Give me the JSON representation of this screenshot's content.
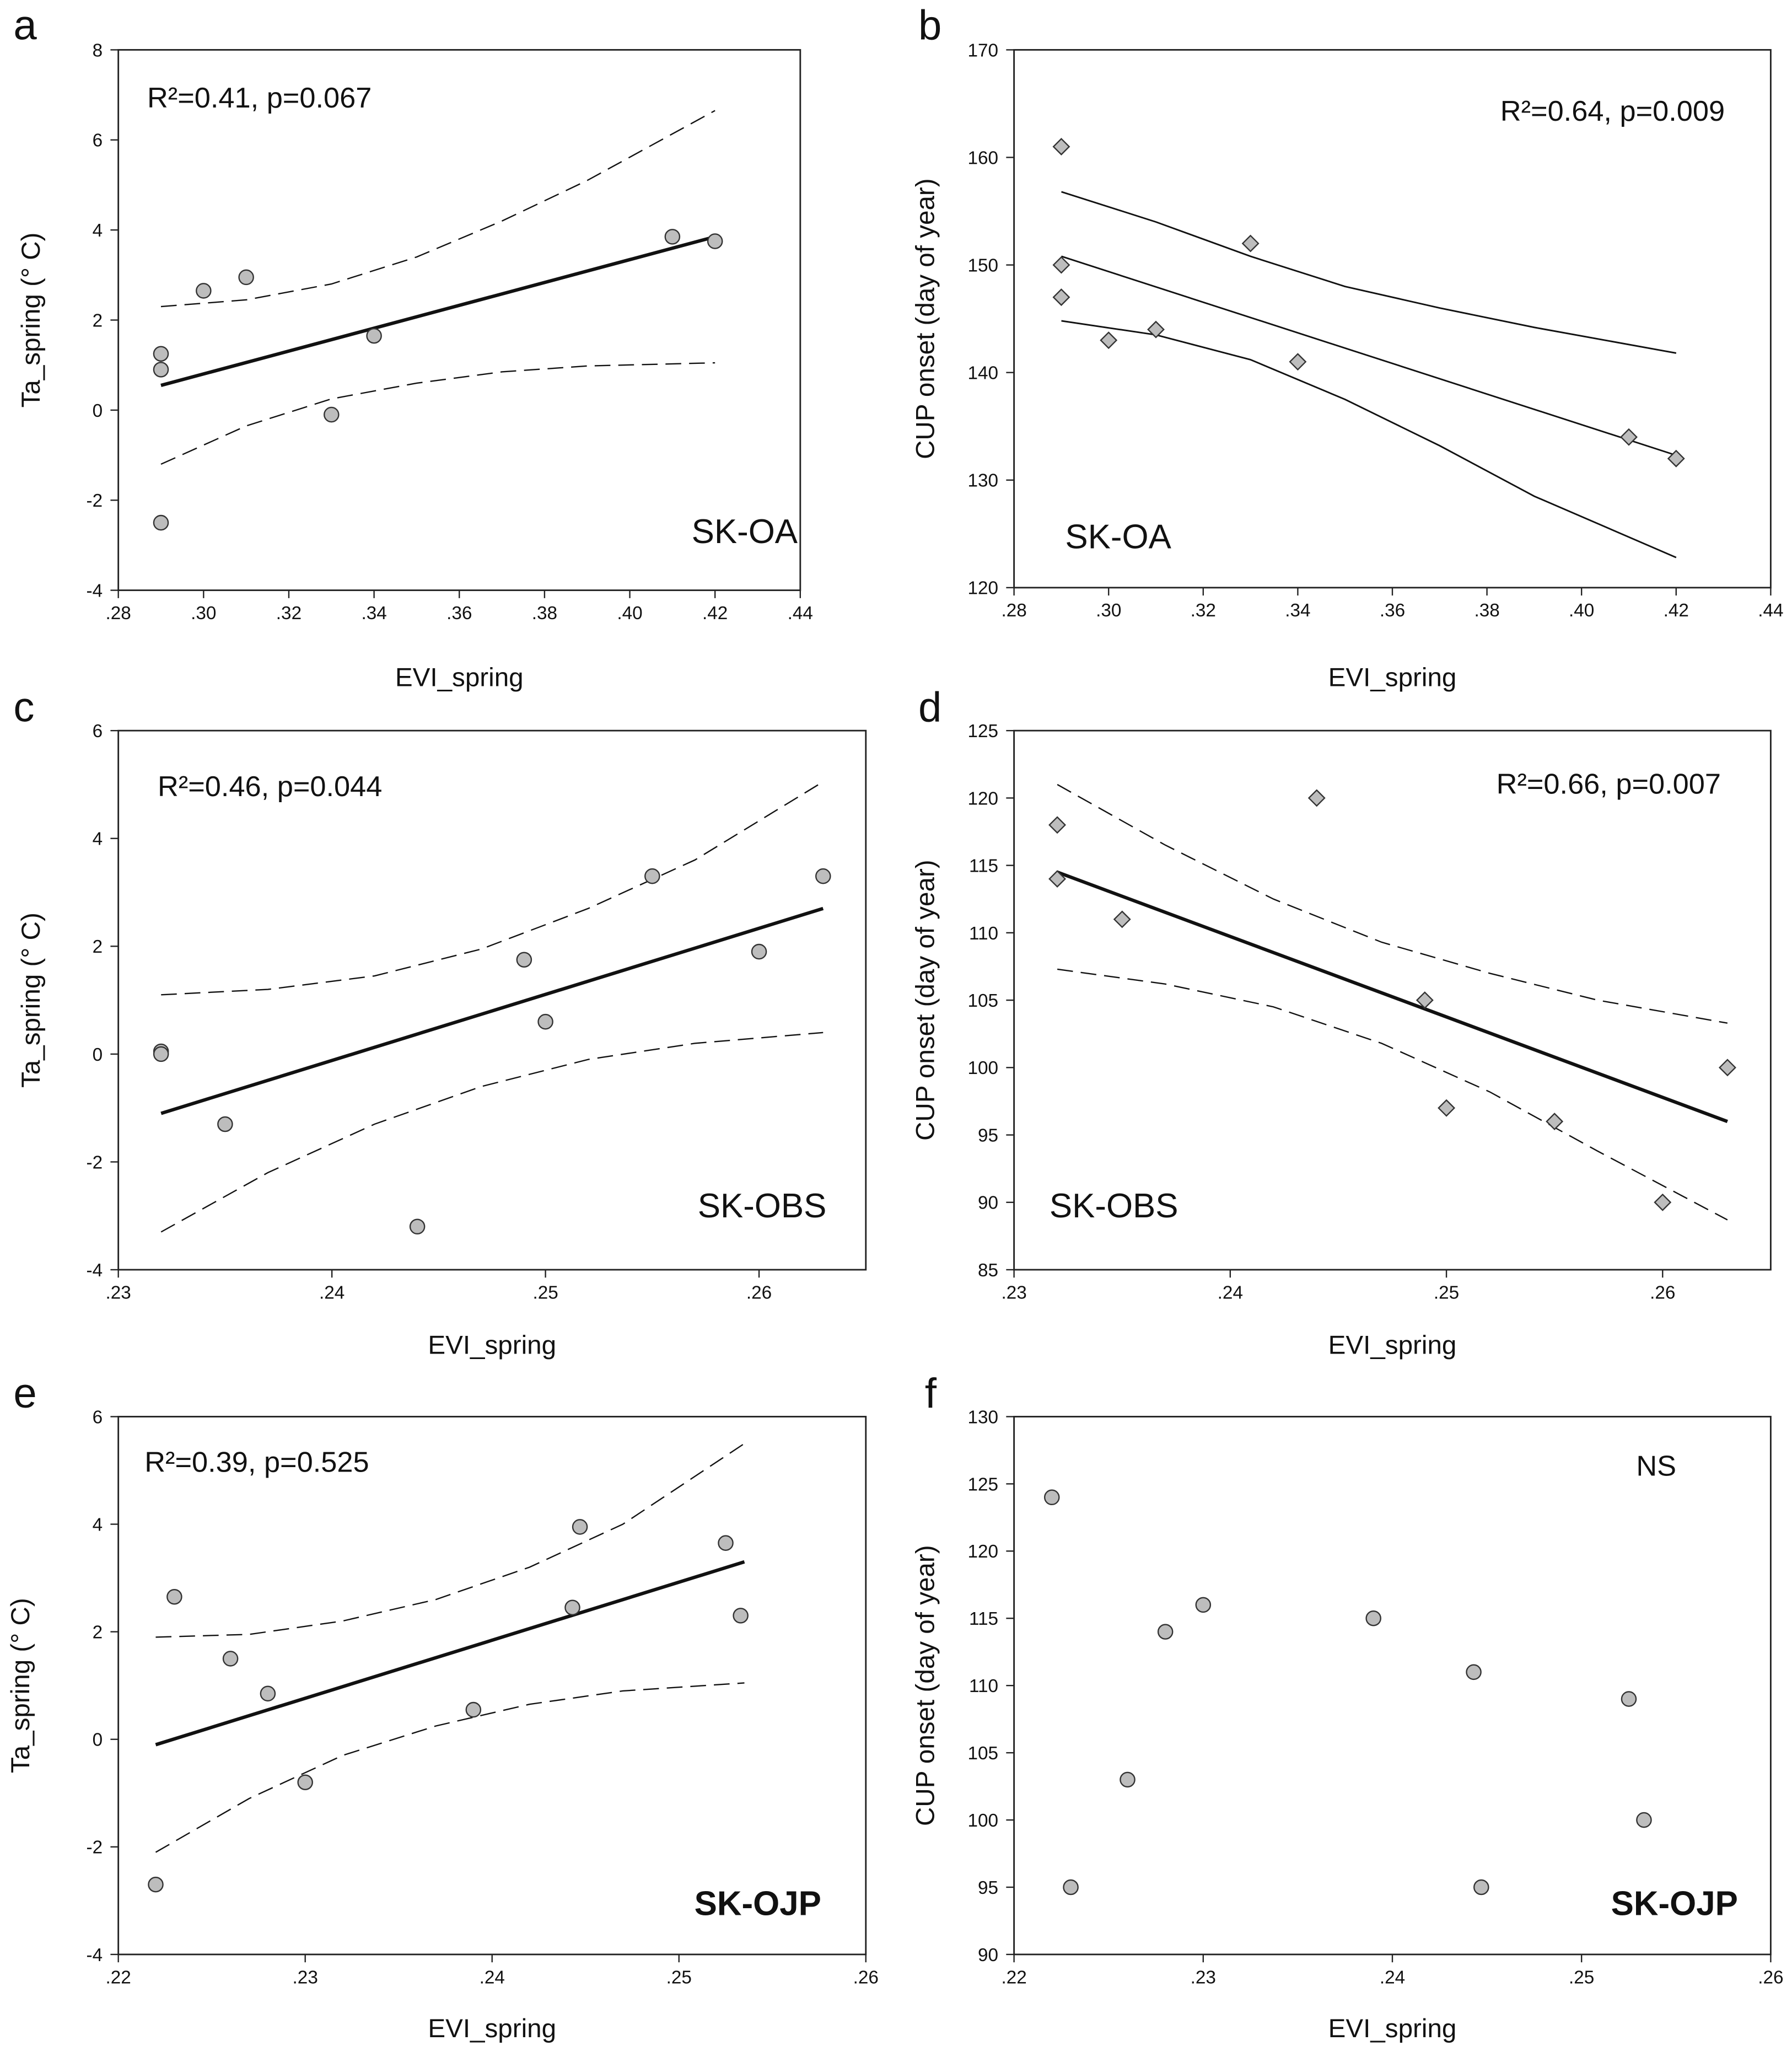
{
  "chart_data": [
    {
      "panel": "a",
      "type": "scatter",
      "xlabel": "EVI_spring",
      "ylabel": "Ta_spring (° C)",
      "stat": "R²=0.41, p=0.067",
      "site": "SK-OA",
      "marker": "circle",
      "fit_style": "thick",
      "ci_style": "dashed",
      "xlim": [
        0.28,
        0.44
      ],
      "ylim": [
        -4,
        8
      ],
      "xticks": [
        0.28,
        0.3,
        0.32,
        0.34,
        0.36,
        0.38,
        0.4,
        0.42,
        0.44
      ],
      "xtick_labels": [
        ".28",
        ".30",
        ".32",
        ".34",
        ".36",
        ".38",
        ".40",
        ".42",
        ".44"
      ],
      "yticks": [
        -4,
        -2,
        0,
        2,
        4,
        6,
        8
      ],
      "ytick_labels": [
        "-4",
        "-2",
        "0",
        "2",
        "4",
        "6",
        "8"
      ],
      "points": [
        [
          0.29,
          -2.5
        ],
        [
          0.29,
          0.9
        ],
        [
          0.29,
          1.25
        ],
        [
          0.3,
          2.65
        ],
        [
          0.31,
          2.95
        ],
        [
          0.33,
          -0.1
        ],
        [
          0.34,
          1.65
        ],
        [
          0.41,
          3.85
        ],
        [
          0.42,
          3.75
        ]
      ],
      "fit": [
        [
          0.29,
          0.55
        ],
        [
          0.42,
          3.85
        ]
      ],
      "ci_upper": [
        [
          0.29,
          2.3
        ],
        [
          0.31,
          2.45
        ],
        [
          0.33,
          2.8
        ],
        [
          0.35,
          3.4
        ],
        [
          0.37,
          4.2
        ],
        [
          0.39,
          5.1
        ],
        [
          0.42,
          6.65
        ]
      ],
      "ci_lower": [
        [
          0.29,
          -1.2
        ],
        [
          0.31,
          -0.35
        ],
        [
          0.33,
          0.25
        ],
        [
          0.35,
          0.6
        ],
        [
          0.37,
          0.85
        ],
        [
          0.39,
          0.98
        ],
        [
          0.42,
          1.05
        ]
      ]
    },
    {
      "panel": "b",
      "type": "scatter",
      "xlabel": "EVI_spring",
      "ylabel": "CUP onset (day of year)",
      "stat": "R²=0.64, p=0.009",
      "site": "SK-OA",
      "marker": "diamond",
      "fit_style": "thin",
      "ci_style": "thin",
      "xlim": [
        0.28,
        0.44
      ],
      "ylim": [
        120,
        170
      ],
      "xticks": [
        0.28,
        0.3,
        0.32,
        0.34,
        0.36,
        0.38,
        0.4,
        0.42,
        0.44
      ],
      "xtick_labels": [
        ".28",
        ".30",
        ".32",
        ".34",
        ".36",
        ".38",
        ".40",
        ".42",
        ".44"
      ],
      "yticks": [
        120,
        130,
        140,
        150,
        160,
        170
      ],
      "ytick_labels": [
        "120",
        "130",
        "140",
        "150",
        "160",
        "170"
      ],
      "points": [
        [
          0.29,
          161
        ],
        [
          0.29,
          150
        ],
        [
          0.29,
          147
        ],
        [
          0.3,
          143
        ],
        [
          0.31,
          144
        ],
        [
          0.33,
          152
        ],
        [
          0.34,
          141
        ],
        [
          0.41,
          134
        ],
        [
          0.42,
          132
        ]
      ],
      "fit": [
        [
          0.29,
          150.8
        ],
        [
          0.42,
          132.3
        ]
      ],
      "ci_upper": [
        [
          0.29,
          156.8
        ],
        [
          0.31,
          154
        ],
        [
          0.33,
          150.8
        ],
        [
          0.35,
          148
        ],
        [
          0.37,
          146
        ],
        [
          0.39,
          144.2
        ],
        [
          0.42,
          141.8
        ]
      ],
      "ci_lower": [
        [
          0.29,
          144.8
        ],
        [
          0.31,
          143.5
        ],
        [
          0.33,
          141.2
        ],
        [
          0.35,
          137.5
        ],
        [
          0.37,
          133.2
        ],
        [
          0.39,
          128.5
        ],
        [
          0.42,
          122.8
        ]
      ]
    },
    {
      "panel": "c",
      "type": "scatter",
      "xlabel": "EVI_spring",
      "ylabel": "Ta_spring (° C)",
      "stat": "R²=0.46, p=0.044",
      "site": "SK-OBS",
      "marker": "circle",
      "fit_style": "thick",
      "ci_style": "dashed",
      "xlim": [
        0.23,
        0.265
      ],
      "ylim": [
        -4,
        6
      ],
      "xticks": [
        0.23,
        0.24,
        0.25,
        0.26
      ],
      "xtick_labels": [
        ".23",
        ".24",
        ".25",
        ".26"
      ],
      "yticks": [
        -4,
        -2,
        0,
        2,
        4,
        6
      ],
      "ytick_labels": [
        "-4",
        "-2",
        "0",
        "2",
        "4",
        "6"
      ],
      "points": [
        [
          0.232,
          0.05
        ],
        [
          0.232,
          0.0
        ],
        [
          0.235,
          -1.3
        ],
        [
          0.244,
          -3.2
        ],
        [
          0.249,
          1.75
        ],
        [
          0.25,
          0.6
        ],
        [
          0.255,
          3.3
        ],
        [
          0.26,
          1.9
        ],
        [
          0.263,
          3.3
        ]
      ],
      "fit": [
        [
          0.232,
          -1.1
        ],
        [
          0.263,
          2.7
        ]
      ],
      "ci_upper": [
        [
          0.232,
          1.1
        ],
        [
          0.237,
          1.2
        ],
        [
          0.242,
          1.45
        ],
        [
          0.247,
          1.95
        ],
        [
          0.252,
          2.7
        ],
        [
          0.257,
          3.6
        ],
        [
          0.263,
          5.05
        ]
      ],
      "ci_lower": [
        [
          0.232,
          -3.3
        ],
        [
          0.237,
          -2.2
        ],
        [
          0.242,
          -1.3
        ],
        [
          0.247,
          -0.6
        ],
        [
          0.252,
          -0.1
        ],
        [
          0.257,
          0.2
        ],
        [
          0.263,
          0.4
        ]
      ]
    },
    {
      "panel": "d",
      "type": "scatter",
      "xlabel": "EVI_spring",
      "ylabel": "CUP onset (day of year)",
      "stat": "R²=0.66, p=0.007",
      "site": "SK-OBS",
      "marker": "diamond",
      "fit_style": "thick",
      "ci_style": "dashed",
      "xlim": [
        0.23,
        0.265
      ],
      "ylim": [
        85,
        125
      ],
      "xticks": [
        0.23,
        0.24,
        0.25,
        0.26
      ],
      "xtick_labels": [
        ".23",
        ".24",
        ".25",
        ".26"
      ],
      "yticks": [
        85,
        90,
        95,
        100,
        105,
        110,
        115,
        120,
        125
      ],
      "ytick_labels": [
        "85",
        "90",
        "95",
        "100",
        "105",
        "110",
        "115",
        "120",
        "125"
      ],
      "points": [
        [
          0.232,
          118
        ],
        [
          0.232,
          114
        ],
        [
          0.235,
          111
        ],
        [
          0.244,
          120
        ],
        [
          0.249,
          105
        ],
        [
          0.25,
          97
        ],
        [
          0.255,
          96
        ],
        [
          0.26,
          90
        ],
        [
          0.263,
          100
        ]
      ],
      "fit": [
        [
          0.232,
          114.5
        ],
        [
          0.263,
          96
        ]
      ],
      "ci_upper": [
        [
          0.232,
          121
        ],
        [
          0.237,
          116.5
        ],
        [
          0.242,
          112.5
        ],
        [
          0.247,
          109.3
        ],
        [
          0.252,
          107
        ],
        [
          0.257,
          105
        ],
        [
          0.263,
          103.3
        ]
      ],
      "ci_lower": [
        [
          0.232,
          107.3
        ],
        [
          0.237,
          106.2
        ],
        [
          0.242,
          104.5
        ],
        [
          0.247,
          101.8
        ],
        [
          0.252,
          98.2
        ],
        [
          0.257,
          93.8
        ],
        [
          0.263,
          88.7
        ]
      ]
    },
    {
      "panel": "e",
      "type": "scatter",
      "xlabel": "EVI_spring",
      "ylabel": "Ta_spring (° C)",
      "stat": "R²=0.39, p=0.525",
      "site": "SK-OJP",
      "marker": "circle",
      "fit_style": "thick",
      "ci_style": "dashed",
      "xlim": [
        0.22,
        0.26
      ],
      "ylim": [
        -4,
        6
      ],
      "xticks": [
        0.22,
        0.23,
        0.24,
        0.25,
        0.26
      ],
      "xtick_labels": [
        ".22",
        ".23",
        ".24",
        ".25",
        ".26"
      ],
      "yticks": [
        -4,
        -2,
        0,
        2,
        4,
        6
      ],
      "ytick_labels": [
        "-4",
        "-2",
        "0",
        "2",
        "4",
        "6"
      ],
      "points": [
        [
          0.222,
          -2.7
        ],
        [
          0.223,
          2.65
        ],
        [
          0.226,
          1.5
        ],
        [
          0.228,
          0.85
        ],
        [
          0.23,
          -0.8
        ],
        [
          0.239,
          0.55
        ],
        [
          0.2443,
          2.45
        ],
        [
          0.2447,
          3.95
        ],
        [
          0.2525,
          3.65
        ],
        [
          0.2533,
          2.3
        ]
      ],
      "fit": [
        [
          0.222,
          -0.1
        ],
        [
          0.2535,
          3.3
        ]
      ],
      "ci_upper": [
        [
          0.222,
          1.9
        ],
        [
          0.227,
          1.95
        ],
        [
          0.232,
          2.2
        ],
        [
          0.237,
          2.6
        ],
        [
          0.242,
          3.2
        ],
        [
          0.247,
          4.0
        ],
        [
          0.2535,
          5.5
        ]
      ],
      "ci_lower": [
        [
          0.222,
          -2.1
        ],
        [
          0.227,
          -1.1
        ],
        [
          0.232,
          -0.3
        ],
        [
          0.237,
          0.25
        ],
        [
          0.242,
          0.65
        ],
        [
          0.247,
          0.9
        ],
        [
          0.2535,
          1.05
        ]
      ]
    },
    {
      "panel": "f",
      "type": "scatter",
      "xlabel": "EVI_spring",
      "ylabel": "CUP onset (day of year)",
      "stat": "NS",
      "site": "SK-OJP",
      "marker": "circle",
      "fit_style": "none",
      "ci_style": "none",
      "xlim": [
        0.22,
        0.26
      ],
      "ylim": [
        90,
        130
      ],
      "xticks": [
        0.22,
        0.23,
        0.24,
        0.25,
        0.26
      ],
      "xtick_labels": [
        ".22",
        ".23",
        ".24",
        ".25",
        ".26"
      ],
      "yticks": [
        90,
        95,
        100,
        105,
        110,
        115,
        120,
        125,
        130
      ],
      "ytick_labels": [
        "90",
        "95",
        "100",
        "105",
        "110",
        "115",
        "120",
        "125",
        "130"
      ],
      "points": [
        [
          0.222,
          124
        ],
        [
          0.223,
          95
        ],
        [
          0.226,
          103
        ],
        [
          0.228,
          114
        ],
        [
          0.23,
          116
        ],
        [
          0.239,
          115
        ],
        [
          0.2443,
          111
        ],
        [
          0.2447,
          95
        ],
        [
          0.2525,
          109
        ],
        [
          0.2533,
          100
        ]
      ],
      "fit": [],
      "ci_upper": [],
      "ci_lower": []
    }
  ],
  "colors": {
    "marker_fill": "#bdbdbd",
    "marker_stroke": "#333333",
    "line": "#111111"
  }
}
